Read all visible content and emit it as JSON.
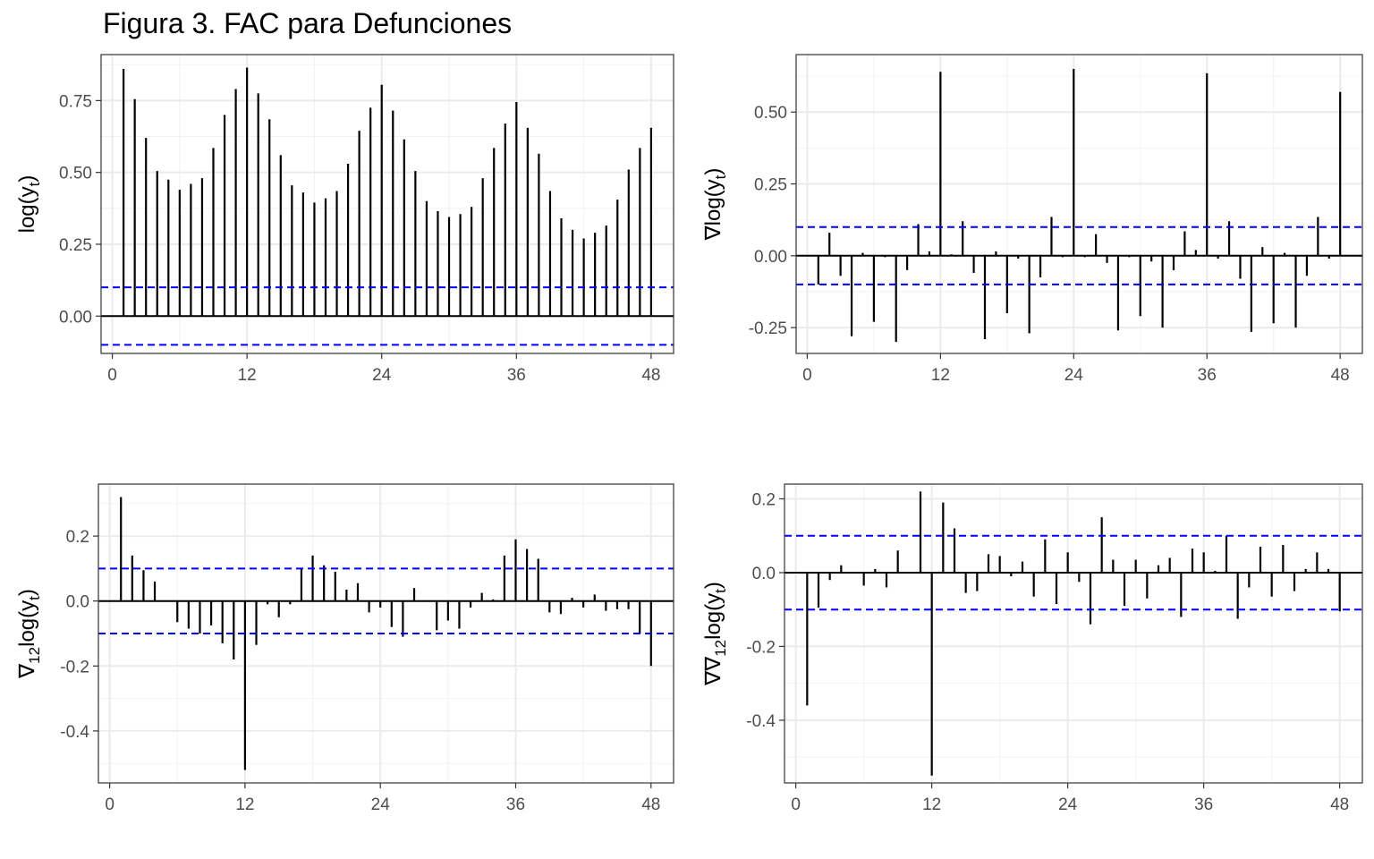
{
  "figure": {
    "title": "Figura 3. FAC para Defunciones"
  },
  "chart_data": [
    {
      "type": "bar",
      "panel": "top-left",
      "ylabel": "log(y",
      "ylabel_sub": "t",
      "ylabel_suffix": ")",
      "xlim": [
        -1,
        50
      ],
      "ylim": [
        -0.13,
        0.91
      ],
      "xticks": [
        0,
        12,
        24,
        36,
        48
      ],
      "yticks": [
        0,
        0.25,
        0.5,
        0.75
      ],
      "ytick_labels": [
        "0.00",
        "0.25",
        "0.50",
        "0.75"
      ],
      "conf_bounds": [
        0.1,
        -0.1
      ],
      "x": [
        1,
        2,
        3,
        4,
        5,
        6,
        7,
        8,
        9,
        10,
        11,
        12,
        13,
        14,
        15,
        16,
        17,
        18,
        19,
        20,
        21,
        22,
        23,
        24,
        25,
        26,
        27,
        28,
        29,
        30,
        31,
        32,
        33,
        34,
        35,
        36,
        37,
        38,
        39,
        40,
        41,
        42,
        43,
        44,
        45,
        46,
        47,
        48
      ],
      "values": [
        0.86,
        0.755,
        0.62,
        0.505,
        0.475,
        0.44,
        0.46,
        0.48,
        0.585,
        0.7,
        0.79,
        0.865,
        0.775,
        0.685,
        0.56,
        0.455,
        0.43,
        0.395,
        0.41,
        0.435,
        0.53,
        0.645,
        0.725,
        0.805,
        0.715,
        0.615,
        0.505,
        0.4,
        0.365,
        0.345,
        0.355,
        0.38,
        0.48,
        0.585,
        0.67,
        0.745,
        0.655,
        0.565,
        0.435,
        0.34,
        0.3,
        0.27,
        0.29,
        0.315,
        0.405,
        0.51,
        0.585,
        0.655
      ]
    },
    {
      "type": "bar",
      "panel": "top-right",
      "ylabel": "∇log(y",
      "ylabel_sub": "t",
      "ylabel_suffix": ")",
      "xlim": [
        -1,
        50
      ],
      "ylim": [
        -0.34,
        0.7
      ],
      "xticks": [
        0,
        12,
        24,
        36,
        48
      ],
      "yticks": [
        -0.25,
        0,
        0.25,
        0.5
      ],
      "ytick_labels": [
        "-0.25",
        "0.00",
        "0.25",
        "0.50"
      ],
      "conf_bounds": [
        0.1,
        -0.1
      ],
      "x": [
        1,
        2,
        3,
        4,
        5,
        6,
        7,
        8,
        9,
        10,
        11,
        12,
        13,
        14,
        15,
        16,
        17,
        18,
        19,
        20,
        21,
        22,
        23,
        24,
        25,
        26,
        27,
        28,
        29,
        30,
        31,
        32,
        33,
        34,
        35,
        36,
        37,
        38,
        39,
        40,
        41,
        42,
        43,
        44,
        45,
        46,
        47,
        48
      ],
      "values": [
        -0.1,
        0.08,
        -0.07,
        -0.28,
        0.01,
        -0.23,
        -0.005,
        -0.3,
        -0.05,
        0.11,
        0.015,
        0.64,
        0.005,
        0.12,
        -0.06,
        -0.29,
        0.015,
        -0.2,
        -0.01,
        -0.27,
        -0.075,
        0.135,
        -0.005,
        0.65,
        -0.005,
        0.075,
        -0.025,
        -0.26,
        -0.005,
        -0.21,
        -0.02,
        -0.25,
        -0.05,
        0.085,
        0.02,
        0.635,
        -0.01,
        0.12,
        -0.08,
        -0.265,
        0.03,
        -0.235,
        0.01,
        -0.25,
        -0.07,
        0.135,
        -0.01,
        0.57
      ]
    },
    {
      "type": "bar",
      "panel": "bottom-left",
      "ylabel": "∇",
      "ylabel_mid_sub": "12",
      "ylabel_mid": "log(y",
      "ylabel_sub": "t",
      "ylabel_suffix": ")",
      "xlim": [
        -1,
        50
      ],
      "ylim": [
        -0.56,
        0.36
      ],
      "xticks": [
        0,
        12,
        24,
        36,
        48
      ],
      "yticks": [
        -0.4,
        -0.2,
        0,
        0.2
      ],
      "ytick_labels": [
        "-0.4",
        "-0.2",
        "0.0",
        "0.2"
      ],
      "conf_bounds": [
        0.1,
        -0.1
      ],
      "x": [
        1,
        2,
        3,
        4,
        5,
        6,
        7,
        8,
        9,
        10,
        11,
        12,
        13,
        14,
        15,
        16,
        17,
        18,
        19,
        20,
        21,
        22,
        23,
        24,
        25,
        26,
        27,
        28,
        29,
        30,
        31,
        32,
        33,
        34,
        35,
        36,
        37,
        38,
        39,
        40,
        41,
        42,
        43,
        44,
        45,
        46,
        47,
        48
      ],
      "values": [
        0.32,
        0.14,
        0.095,
        0.06,
        0.0,
        -0.065,
        -0.085,
        -0.1,
        -0.075,
        -0.13,
        -0.18,
        -0.52,
        -0.135,
        -0.01,
        -0.05,
        -0.01,
        0.1,
        0.14,
        0.11,
        0.09,
        0.035,
        0.055,
        -0.035,
        -0.02,
        -0.08,
        -0.11,
        0.04,
        0.0,
        -0.09,
        -0.06,
        -0.085,
        -0.02,
        0.025,
        0.005,
        0.14,
        0.19,
        0.16,
        0.13,
        -0.035,
        -0.04,
        0.01,
        -0.02,
        0.02,
        -0.03,
        -0.025,
        -0.025,
        -0.1,
        -0.2
      ]
    },
    {
      "type": "bar",
      "panel": "bottom-right",
      "ylabel": "∇∇",
      "ylabel_mid_sub": "12",
      "ylabel_mid": "log(y",
      "ylabel_sub": "t",
      "ylabel_suffix": ")",
      "xlim": [
        -1,
        50
      ],
      "ylim": [
        -0.57,
        0.24
      ],
      "xticks": [
        0,
        12,
        24,
        36,
        48
      ],
      "yticks": [
        -0.4,
        -0.2,
        0,
        0.2
      ],
      "ytick_labels": [
        "-0.4",
        "-0.2",
        "0.0",
        "0.2"
      ],
      "conf_bounds": [
        0.1,
        -0.1
      ],
      "x": [
        1,
        2,
        3,
        4,
        5,
        6,
        7,
        8,
        9,
        10,
        11,
        12,
        13,
        14,
        15,
        16,
        17,
        18,
        19,
        20,
        21,
        22,
        23,
        24,
        25,
        26,
        27,
        28,
        29,
        30,
        31,
        32,
        33,
        34,
        35,
        36,
        37,
        38,
        39,
        40,
        41,
        42,
        43,
        44,
        45,
        46,
        47,
        48
      ],
      "values": [
        -0.36,
        -0.095,
        -0.02,
        0.02,
        0.0,
        -0.035,
        0.01,
        -0.04,
        0.06,
        0.0,
        0.22,
        -0.55,
        0.19,
        0.12,
        -0.055,
        -0.05,
        0.05,
        0.045,
        -0.01,
        0.03,
        -0.065,
        0.09,
        -0.085,
        0.055,
        -0.025,
        -0.14,
        0.15,
        0.035,
        -0.09,
        0.035,
        -0.07,
        0.02,
        0.04,
        -0.12,
        0.065,
        0.055,
        0.005,
        0.1,
        -0.125,
        -0.04,
        0.07,
        -0.065,
        0.075,
        -0.05,
        0.01,
        0.055,
        0.01,
        -0.105
      ]
    }
  ]
}
